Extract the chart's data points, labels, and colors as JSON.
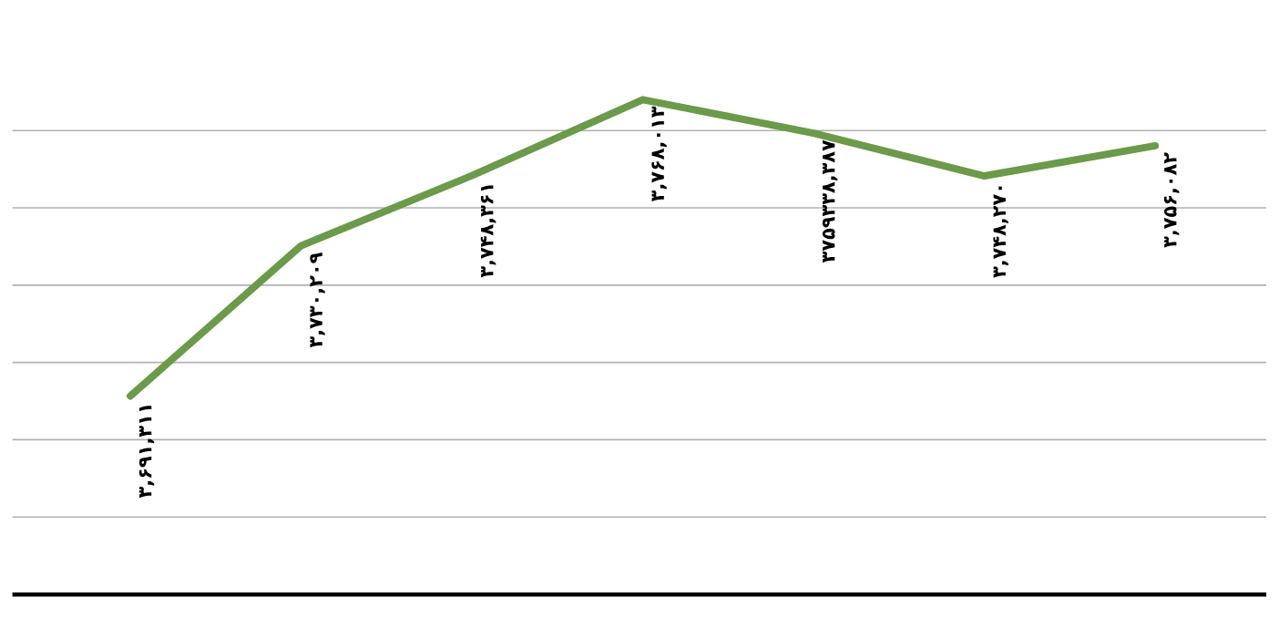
{
  "chart_data": {
    "type": "line",
    "categories": [
      null,
      null,
      null,
      null,
      null,
      null,
      null
    ],
    "values": [
      3691311,
      3730209,
      3748361,
      3768013,
      3759338,
      3748270,
      3756082
    ],
    "value_labels": [
      "۳,۶۹۱,۳۱۱",
      "۳,۷۳۰,۲۰۹",
      "۳,۷۴۸,۳۶۱",
      "۳,۷۶۸,۰۱۳",
      "۳۷۵۹۳۳۸,۳۸۷",
      "۳,۷۴۸,۲۷۰",
      "۳,۷۵۶,۰۸۲"
    ],
    "color": "#6b9a4a",
    "grid": "y",
    "tick_labels": false,
    "marker": "none",
    "line_style": "solid"
  }
}
